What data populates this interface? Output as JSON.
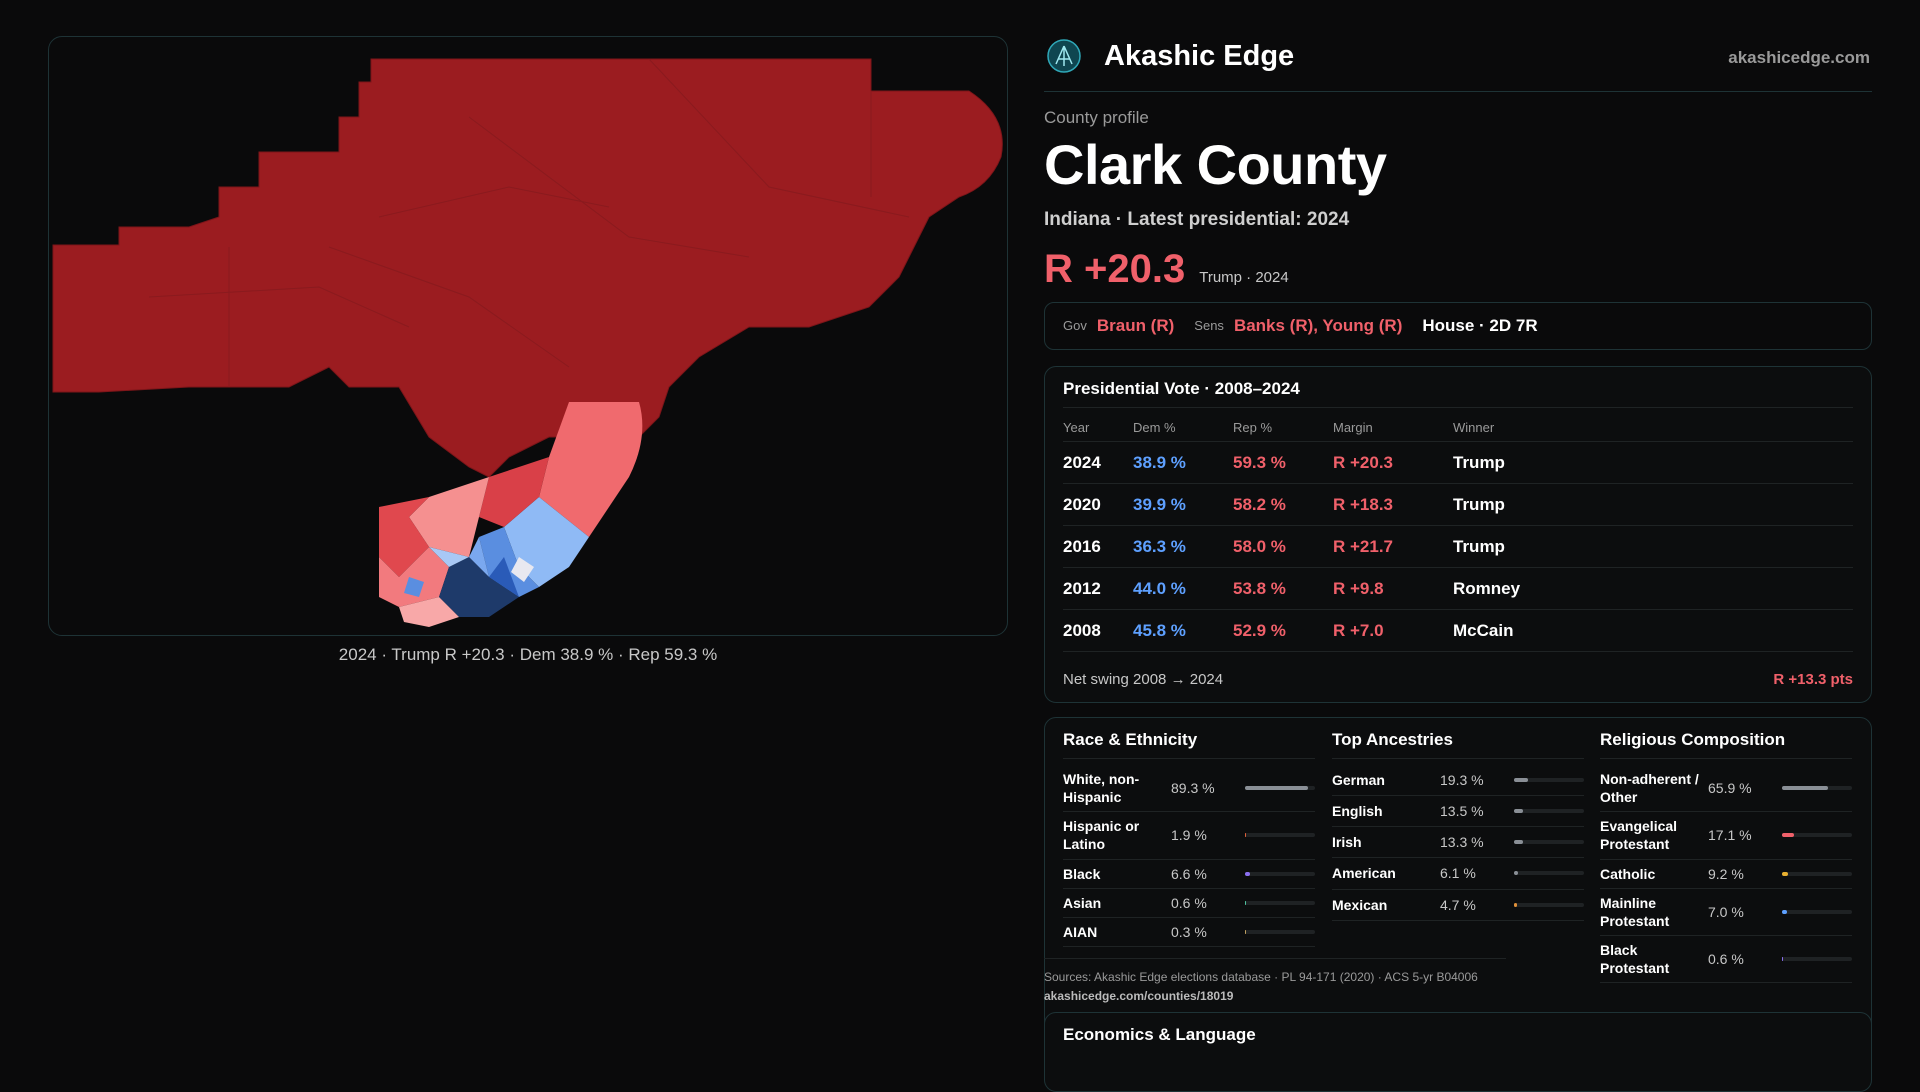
{
  "brand": {
    "name": "Akashic Edge",
    "url": "akashicedge.com"
  },
  "profile": {
    "eyebrow": "County profile",
    "title": "Clark County",
    "subtitle": "Indiana · Latest presidential: 2024",
    "margin": "R +20.3",
    "margin_sub": "Trump · 2024"
  },
  "officials": {
    "gov_label": "Gov",
    "gov": "Braun (R)",
    "sens_label": "Sens",
    "sens": "Banks (R), Young (R)",
    "house": "House · 2D 7R"
  },
  "map": {
    "caption": "2024 · Trump R +20.3 · Dem 38.9 % · Rep 59.3 %"
  },
  "votes": {
    "title": "Presidential Vote · 2008–2024",
    "headers": {
      "year": "Year",
      "dem": "Dem %",
      "rep": "Rep %",
      "margin": "Margin",
      "winner": "Winner"
    },
    "rows": [
      {
        "year": "2024",
        "dem": "38.9 %",
        "rep": "59.3 %",
        "margin": "R +20.3",
        "winner": "Trump"
      },
      {
        "year": "2020",
        "dem": "39.9 %",
        "rep": "58.2 %",
        "margin": "R +18.3",
        "winner": "Trump"
      },
      {
        "year": "2016",
        "dem": "36.3 %",
        "rep": "58.0 %",
        "margin": "R +21.7",
        "winner": "Trump"
      },
      {
        "year": "2012",
        "dem": "44.0 %",
        "rep": "53.8 %",
        "margin": "R +9.8",
        "winner": "Romney"
      },
      {
        "year": "2008",
        "dem": "45.8 %",
        "rep": "52.9 %",
        "margin": "R +7.0",
        "winner": "McCain"
      }
    ],
    "swing_label": "Net swing 2008 → 2024",
    "swing_value": "R +13.3 pts"
  },
  "race": {
    "title": "Race & Ethnicity",
    "rows": [
      {
        "name": "White, non-Hispanic",
        "pct": "89.3 %",
        "value": 89.3,
        "color": "#8a8f96"
      },
      {
        "name": "Hispanic or Latino",
        "pct": "1.9 %",
        "value": 1.9,
        "color": "#e0603a"
      },
      {
        "name": "Black",
        "pct": "6.6 %",
        "value": 6.6,
        "color": "#8b6ff0"
      },
      {
        "name": "Asian",
        "pct": "0.6 %",
        "value": 0.6,
        "color": "#4fc3a0"
      },
      {
        "name": "AIAN",
        "pct": "0.3 %",
        "value": 0.3,
        "color": "#c0a060"
      }
    ]
  },
  "ancestry": {
    "title": "Top Ancestries",
    "rows": [
      {
        "name": "German",
        "pct": "19.3 %",
        "value": 19.3,
        "color": "#8a8f96"
      },
      {
        "name": "English",
        "pct": "13.5 %",
        "value": 13.5,
        "color": "#8a8f96"
      },
      {
        "name": "Irish",
        "pct": "13.3 %",
        "value": 13.3,
        "color": "#8a8f96"
      },
      {
        "name": "American",
        "pct": "6.1 %",
        "value": 6.1,
        "color": "#8a8f96"
      },
      {
        "name": "Mexican",
        "pct": "4.7 %",
        "value": 4.7,
        "color": "#e0903a"
      }
    ]
  },
  "religion": {
    "title": "Religious Composition",
    "rows": [
      {
        "name": "Non-adherent / Other",
        "pct": "65.9 %",
        "value": 65.9,
        "color": "#8a8f96"
      },
      {
        "name": "Evangelical Protestant",
        "pct": "17.1 %",
        "value": 17.1,
        "color": "#f0606a"
      },
      {
        "name": "Catholic",
        "pct": "9.2 %",
        "value": 9.2,
        "color": "#e8b030"
      },
      {
        "name": "Mainline Protestant",
        "pct": "7.0 %",
        "value": 7.0,
        "color": "#5ea0ff"
      },
      {
        "name": "Black Protestant",
        "pct": "0.6 %",
        "value": 0.6,
        "color": "#8b6ff0"
      }
    ]
  },
  "sources": {
    "text": "Sources: Akashic Edge elections database · PL 94-171 (2020) · ACS 5-yr B04006",
    "url": "akashicedge.com/counties/18019"
  },
  "econ": {
    "title": "Economics & Language"
  }
}
